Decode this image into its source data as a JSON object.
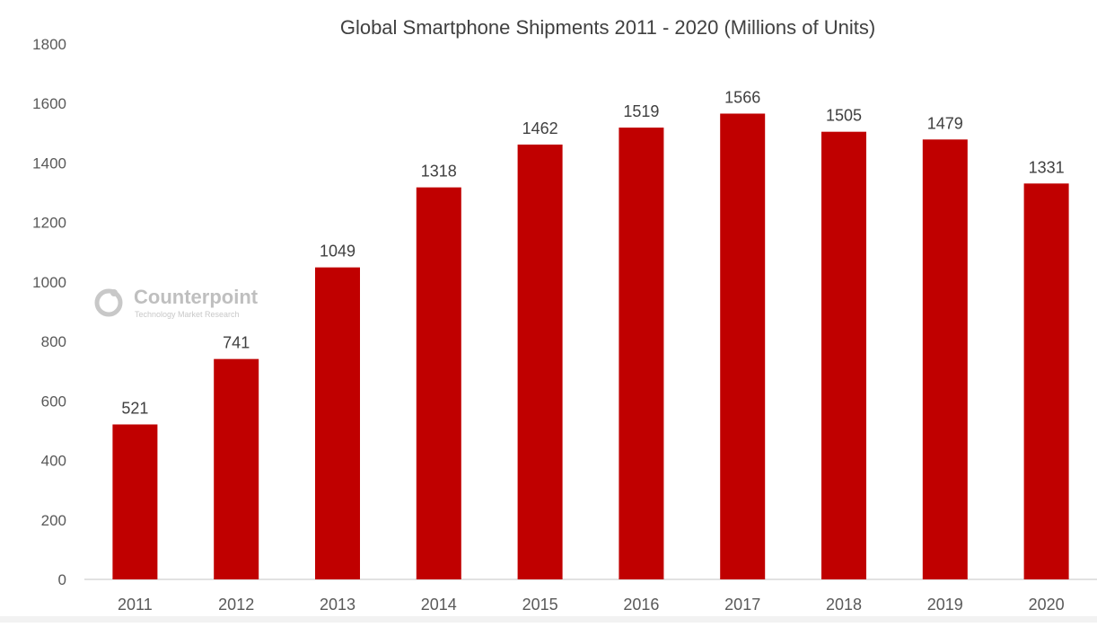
{
  "chart_data": {
    "type": "bar",
    "title": "Global Smartphone Shipments 2011 - 2020 (Millions of Units)",
    "xlabel": "",
    "ylabel": "",
    "categories": [
      "2011",
      "2012",
      "2013",
      "2014",
      "2015",
      "2016",
      "2017",
      "2018",
      "2019",
      "2020"
    ],
    "values": [
      521,
      741,
      1049,
      1318,
      1462,
      1519,
      1566,
      1505,
      1479,
      1331
    ],
    "ylim": [
      0,
      1800
    ],
    "yticks": [
      0,
      200,
      400,
      600,
      800,
      1000,
      1200,
      1400,
      1600,
      1800
    ],
    "grid": false,
    "legend": "none",
    "bar_color": "#c00000",
    "data_labels": true
  },
  "watermark": {
    "brand": "Counterpoint",
    "tagline": "Technology Market Research",
    "color": "#bfbfbf"
  }
}
